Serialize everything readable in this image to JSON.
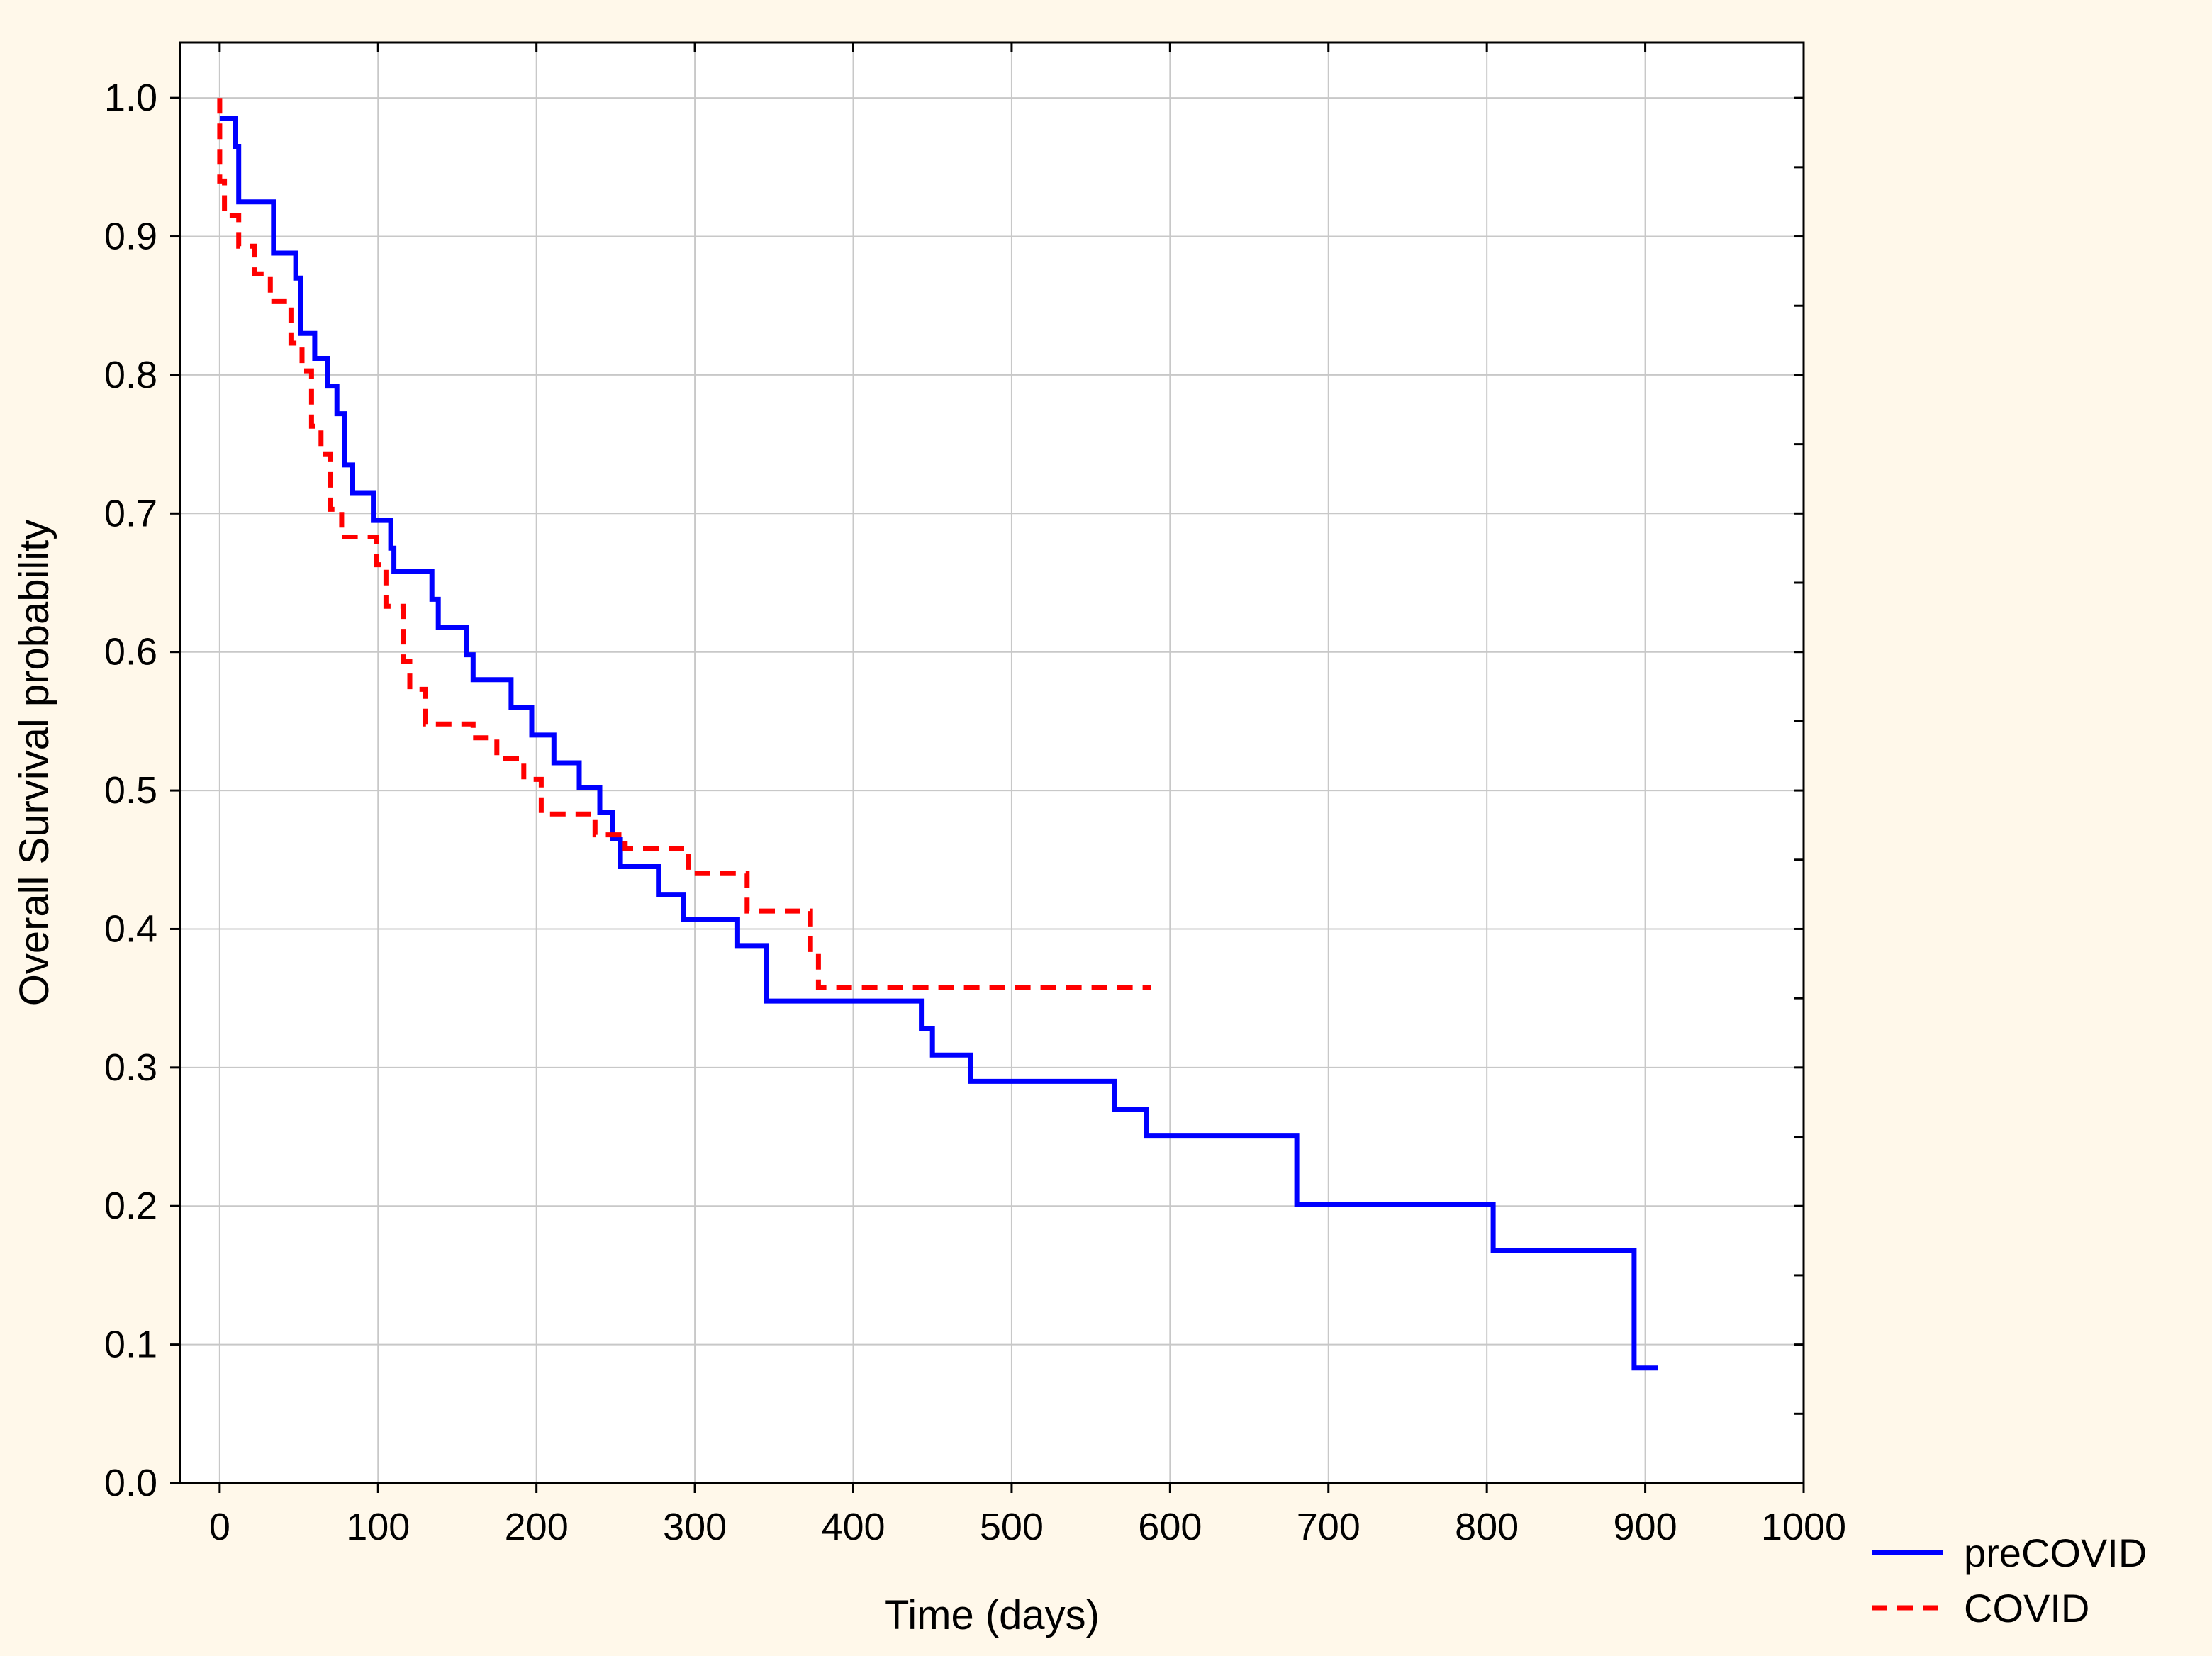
{
  "colors": {
    "background": "#fff8ea",
    "plot_background": "#ffffff",
    "grid": "#c8c8c8",
    "axis": "#000000",
    "precovid": "#0000ff",
    "covid": "#ff0000"
  },
  "chart_data": {
    "type": "line",
    "step": true,
    "title": "",
    "xlabel": "Time (days)",
    "ylabel": "Overall Survival probability",
    "xlim": [
      -25,
      1000
    ],
    "ylim": [
      0,
      1.04
    ],
    "xticks": [
      "0",
      "100",
      "200",
      "300",
      "400",
      "500",
      "600",
      "700",
      "800",
      "900",
      "1000"
    ],
    "yticks": [
      "0.0",
      "0.1",
      "0.2",
      "0.3",
      "0.4",
      "0.5",
      "0.6",
      "0.7",
      "0.8",
      "0.9",
      "1.0"
    ],
    "grid": true,
    "legend_position": "bottom-right, outside plot",
    "series": [
      {
        "name": "preCOVID",
        "style": "solid",
        "color": "#0000ff",
        "points": [
          [
            0,
            0.985
          ],
          [
            10,
            0.985
          ],
          [
            10,
            0.965
          ],
          [
            12,
            0.965
          ],
          [
            12,
            0.925
          ],
          [
            34,
            0.925
          ],
          [
            34,
            0.888
          ],
          [
            48,
            0.888
          ],
          [
            48,
            0.87
          ],
          [
            51,
            0.87
          ],
          [
            51,
            0.83
          ],
          [
            60,
            0.83
          ],
          [
            60,
            0.812
          ],
          [
            68,
            0.812
          ],
          [
            68,
            0.792
          ],
          [
            74,
            0.792
          ],
          [
            74,
            0.772
          ],
          [
            79,
            0.772
          ],
          [
            79,
            0.735
          ],
          [
            84,
            0.735
          ],
          [
            84,
            0.715
          ],
          [
            97,
            0.715
          ],
          [
            97,
            0.695
          ],
          [
            108,
            0.695
          ],
          [
            108,
            0.675
          ],
          [
            110,
            0.675
          ],
          [
            110,
            0.658
          ],
          [
            134,
            0.658
          ],
          [
            134,
            0.638
          ],
          [
            138,
            0.638
          ],
          [
            138,
            0.618
          ],
          [
            156,
            0.618
          ],
          [
            156,
            0.598
          ],
          [
            160,
            0.598
          ],
          [
            160,
            0.58
          ],
          [
            184,
            0.58
          ],
          [
            184,
            0.56
          ],
          [
            197,
            0.56
          ],
          [
            197,
            0.54
          ],
          [
            211,
            0.54
          ],
          [
            211,
            0.52
          ],
          [
            227,
            0.52
          ],
          [
            227,
            0.502
          ],
          [
            240,
            0.502
          ],
          [
            240,
            0.484
          ],
          [
            248,
            0.484
          ],
          [
            248,
            0.465
          ],
          [
            253,
            0.465
          ],
          [
            253,
            0.445
          ],
          [
            277,
            0.445
          ],
          [
            277,
            0.425
          ],
          [
            293,
            0.425
          ],
          [
            293,
            0.407
          ],
          [
            327,
            0.407
          ],
          [
            327,
            0.388
          ],
          [
            345,
            0.388
          ],
          [
            345,
            0.348
          ],
          [
            443,
            0.348
          ],
          [
            443,
            0.328
          ],
          [
            450,
            0.328
          ],
          [
            450,
            0.309
          ],
          [
            474,
            0.309
          ],
          [
            474,
            0.29
          ],
          [
            565,
            0.29
          ],
          [
            565,
            0.27
          ],
          [
            585,
            0.27
          ],
          [
            585,
            0.251
          ],
          [
            680,
            0.251
          ],
          [
            680,
            0.201
          ],
          [
            804,
            0.201
          ],
          [
            804,
            0.168
          ],
          [
            893,
            0.168
          ],
          [
            893,
            0.083
          ],
          [
            908,
            0.083
          ]
        ]
      },
      {
        "name": "COVID",
        "style": "dashed",
        "color": "#ff0000",
        "points": [
          [
            0,
            1.0
          ],
          [
            0,
            0.94
          ],
          [
            3,
            0.94
          ],
          [
            3,
            0.915
          ],
          [
            12,
            0.915
          ],
          [
            12,
            0.893
          ],
          [
            22,
            0.893
          ],
          [
            22,
            0.873
          ],
          [
            32,
            0.873
          ],
          [
            32,
            0.853
          ],
          [
            45,
            0.853
          ],
          [
            45,
            0.823
          ],
          [
            52,
            0.823
          ],
          [
            52,
            0.803
          ],
          [
            58,
            0.803
          ],
          [
            58,
            0.763
          ],
          [
            64,
            0.763
          ],
          [
            64,
            0.743
          ],
          [
            70,
            0.743
          ],
          [
            70,
            0.703
          ],
          [
            77,
            0.703
          ],
          [
            77,
            0.683
          ],
          [
            99,
            0.683
          ],
          [
            99,
            0.663
          ],
          [
            105,
            0.663
          ],
          [
            105,
            0.633
          ],
          [
            116,
            0.633
          ],
          [
            116,
            0.593
          ],
          [
            120,
            0.593
          ],
          [
            120,
            0.573
          ],
          [
            130,
            0.573
          ],
          [
            130,
            0.548
          ],
          [
            160,
            0.548
          ],
          [
            160,
            0.538
          ],
          [
            175,
            0.538
          ],
          [
            175,
            0.523
          ],
          [
            192,
            0.523
          ],
          [
            192,
            0.508
          ],
          [
            203,
            0.508
          ],
          [
            203,
            0.483
          ],
          [
            237,
            0.483
          ],
          [
            237,
            0.468
          ],
          [
            256,
            0.468
          ],
          [
            256,
            0.458
          ],
          [
            296,
            0.458
          ],
          [
            296,
            0.44
          ],
          [
            333,
            0.44
          ],
          [
            333,
            0.413
          ],
          [
            373,
            0.413
          ],
          [
            373,
            0.383
          ],
          [
            378,
            0.383
          ],
          [
            378,
            0.358
          ],
          [
            588,
            0.358
          ]
        ]
      }
    ]
  }
}
